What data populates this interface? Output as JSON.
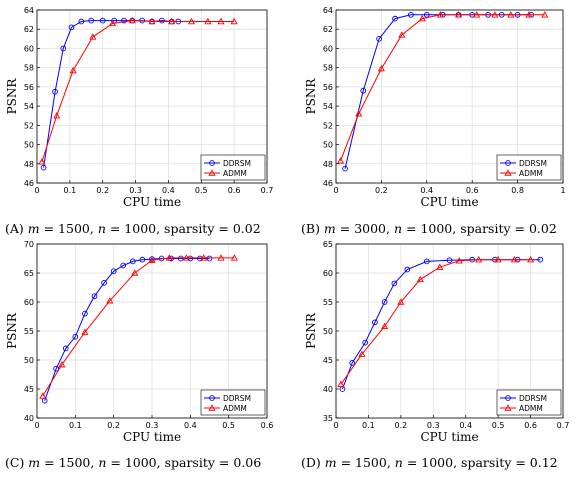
{
  "chart_data": [
    {
      "type": "line",
      "caption": {
        "label": "(A)",
        "m": "1500",
        "n": "1000",
        "sparsity": "0.02"
      },
      "xlabel": "CPU time",
      "ylabel": "PSNR",
      "xlim": [
        0,
        0.7
      ],
      "ylim": [
        46,
        64
      ],
      "xticks": [
        "0",
        "0.1",
        "0.2",
        "0.3",
        "0.4",
        "0.5",
        "0.6",
        "0.7"
      ],
      "yticks": [
        "46",
        "48",
        "50",
        "52",
        "54",
        "56",
        "58",
        "60",
        "62",
        "64"
      ],
      "legend": {
        "position": "bottom-right"
      },
      "series": [
        {
          "name": "DDRSM",
          "color": "#0000ff",
          "marker": "circle",
          "x": [
            0.02,
            0.055,
            0.08,
            0.105,
            0.135,
            0.165,
            0.2,
            0.235,
            0.265,
            0.29,
            0.32,
            0.35,
            0.38,
            0.41,
            0.43
          ],
          "y": [
            47.6,
            55.5,
            60.0,
            62.2,
            62.8,
            62.9,
            62.9,
            62.9,
            62.9,
            62.9,
            62.9,
            62.8,
            62.9,
            62.8,
            62.8
          ]
        },
        {
          "name": "ADMM",
          "color": "#ff0000",
          "marker": "triangle",
          "x": [
            0.015,
            0.06,
            0.11,
            0.17,
            0.23,
            0.29,
            0.35,
            0.41,
            0.47,
            0.52,
            0.56,
            0.6
          ],
          "y": [
            48.2,
            53.0,
            57.7,
            61.2,
            62.6,
            62.9,
            62.8,
            62.8,
            62.8,
            62.8,
            62.8,
            62.8
          ]
        }
      ]
    },
    {
      "type": "line",
      "caption": {
        "label": "(B)",
        "m": "3000",
        "n": "1000",
        "sparsity": "0.02"
      },
      "xlabel": "CPU time",
      "ylabel": "PSNR",
      "xlim": [
        0,
        1
      ],
      "ylim": [
        46,
        64
      ],
      "xticks": [
        "0",
        "0.2",
        "0.4",
        "0.6",
        "0.8",
        "1"
      ],
      "yticks": [
        "46",
        "48",
        "50",
        "52",
        "54",
        "56",
        "58",
        "60",
        "62",
        "64"
      ],
      "legend": {
        "position": "bottom-right"
      },
      "series": [
        {
          "name": "DDRSM",
          "color": "#0000ff",
          "marker": "circle",
          "x": [
            0.04,
            0.12,
            0.19,
            0.26,
            0.33,
            0.4,
            0.47,
            0.54,
            0.6,
            0.67,
            0.73,
            0.8,
            0.86
          ],
          "y": [
            47.5,
            55.6,
            61.0,
            63.1,
            63.5,
            63.5,
            63.5,
            63.5,
            63.5,
            63.5,
            63.5,
            63.5,
            63.5
          ]
        },
        {
          "name": "ADMM",
          "color": "#ff0000",
          "marker": "triangle",
          "x": [
            0.02,
            0.1,
            0.2,
            0.29,
            0.38,
            0.46,
            0.54,
            0.62,
            0.7,
            0.77,
            0.85,
            0.92
          ],
          "y": [
            48.3,
            53.2,
            57.9,
            61.4,
            63.1,
            63.5,
            63.5,
            63.5,
            63.5,
            63.5,
            63.5,
            63.5
          ]
        }
      ]
    },
    {
      "type": "line",
      "caption": {
        "label": "(C)",
        "m": "1500",
        "n": "1000",
        "sparsity": "0.06"
      },
      "xlabel": "CPU time",
      "ylabel": "PSNR",
      "xlim": [
        0,
        0.6
      ],
      "ylim": [
        40,
        70
      ],
      "xticks": [
        "0",
        "0.1",
        "0.2",
        "0.3",
        "0.4",
        "0.5",
        "0.6"
      ],
      "yticks": [
        "40",
        "45",
        "50",
        "55",
        "60",
        "65",
        "70"
      ],
      "legend": {
        "position": "bottom-right"
      },
      "series": [
        {
          "name": "DDRSM",
          "color": "#0000ff",
          "marker": "circle",
          "x": [
            0.02,
            0.05,
            0.075,
            0.1,
            0.125,
            0.15,
            0.175,
            0.2,
            0.225,
            0.25,
            0.275,
            0.3,
            0.325,
            0.35,
            0.375,
            0.4,
            0.425,
            0.45
          ],
          "y": [
            43.0,
            48.5,
            52.0,
            54.0,
            58.0,
            61.0,
            63.3,
            65.3,
            66.3,
            67.0,
            67.3,
            67.4,
            67.5,
            67.5,
            67.5,
            67.5,
            67.5,
            67.5
          ]
        },
        {
          "name": "ADMM",
          "color": "#ff0000",
          "marker": "triangle",
          "x": [
            0.015,
            0.065,
            0.125,
            0.19,
            0.255,
            0.3,
            0.345,
            0.39,
            0.435,
            0.48,
            0.515
          ],
          "y": [
            43.8,
            49.2,
            54.8,
            60.2,
            65.0,
            67.2,
            67.6,
            67.6,
            67.6,
            67.6,
            67.6
          ]
        }
      ]
    },
    {
      "type": "line",
      "caption": {
        "label": "(D)",
        "m": "1500",
        "n": "1000",
        "sparsity": "0.12"
      },
      "xlabel": "CPU time",
      "ylabel": "PSNR",
      "xlim": [
        0,
        0.7
      ],
      "ylim": [
        35,
        65
      ],
      "xticks": [
        "0",
        "0.1",
        "0.2",
        "0.3",
        "0.4",
        "0.5",
        "0.6",
        "0.7"
      ],
      "yticks": [
        "35",
        "40",
        "45",
        "50",
        "55",
        "60",
        "65"
      ],
      "legend": {
        "position": "bottom-right"
      },
      "series": [
        {
          "name": "DDRSM",
          "color": "#0000ff",
          "marker": "circle",
          "x": [
            0.02,
            0.05,
            0.09,
            0.12,
            0.15,
            0.18,
            0.22,
            0.28,
            0.35,
            0.42,
            0.49,
            0.56,
            0.63
          ],
          "y": [
            40.0,
            44.5,
            48.0,
            51.5,
            55.0,
            58.2,
            60.6,
            62.0,
            62.2,
            62.3,
            62.3,
            62.3,
            62.3
          ]
        },
        {
          "name": "ADMM",
          "color": "#ff0000",
          "marker": "triangle",
          "x": [
            0.015,
            0.08,
            0.15,
            0.2,
            0.26,
            0.32,
            0.38,
            0.44,
            0.5,
            0.55,
            0.6
          ],
          "y": [
            40.8,
            46.0,
            50.8,
            55.0,
            58.9,
            61.0,
            62.1,
            62.3,
            62.3,
            62.3,
            62.3
          ]
        }
      ]
    }
  ]
}
